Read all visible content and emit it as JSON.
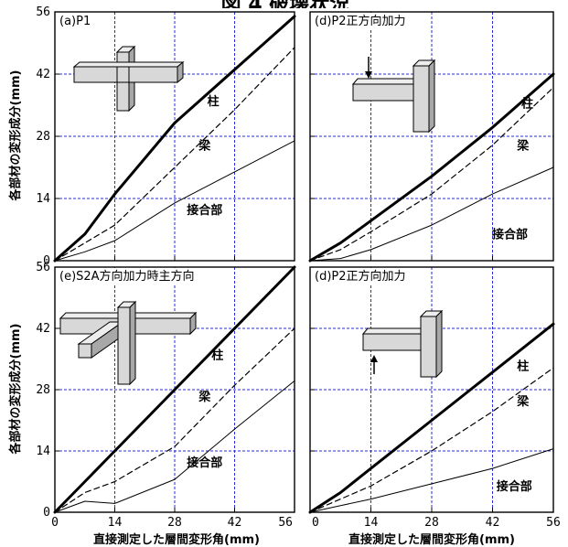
{
  "figure": {
    "title": "図 4 破壊状況",
    "ylabel": "各部材の変形成分(mm)",
    "xlabel": "直接測定した層間変形角(mm)"
  },
  "chart_data": [
    {
      "type": "line",
      "panel_label": "(a)P1",
      "xlim": [
        0,
        56
      ],
      "ylim": [
        0,
        56
      ],
      "xticks": [
        0,
        14,
        28,
        42,
        56
      ],
      "yticks": [
        0,
        14,
        28,
        42,
        56
      ],
      "grid": true,
      "annotations": [
        {
          "text": "柱",
          "x": 37,
          "y": 35
        },
        {
          "text": "梁",
          "x": 35,
          "y": 25
        },
        {
          "text": "接合部",
          "x": 35,
          "y": 10.5
        }
      ],
      "series": [
        {
          "style": "thick",
          "x": [
            0,
            7,
            14,
            28,
            42,
            56
          ],
          "y": [
            0,
            6,
            15,
            31,
            43,
            55
          ]
        },
        {
          "style": "dashed",
          "x": [
            0,
            7,
            14,
            28,
            42,
            56
          ],
          "y": [
            0,
            4,
            8,
            21,
            34,
            48
          ]
        },
        {
          "style": "thin",
          "x": [
            0,
            7,
            14,
            28,
            42,
            56
          ],
          "y": [
            0,
            2,
            4.5,
            13,
            20,
            27
          ]
        }
      ]
    },
    {
      "type": "line",
      "panel_label": "(d)P2正方向加力",
      "xlim": [
        0,
        56
      ],
      "ylim": [
        0,
        56
      ],
      "xticks": [
        0,
        14,
        28,
        42,
        56
      ],
      "yticks": [
        0,
        14,
        28,
        42,
        56
      ],
      "grid": true,
      "annotations": [
        {
          "text": "柱",
          "x": 50,
          "y": 34.5
        },
        {
          "text": "梁",
          "x": 49,
          "y": 25
        },
        {
          "text": "接合部",
          "x": 46,
          "y": 5
        }
      ],
      "series": [
        {
          "style": "thick",
          "x": [
            0,
            7,
            14,
            28,
            42,
            56
          ],
          "y": [
            0,
            4,
            9,
            19,
            30,
            42
          ]
        },
        {
          "style": "dashed",
          "x": [
            0,
            7,
            14,
            28,
            42,
            56
          ],
          "y": [
            0,
            2.5,
            6.5,
            15,
            26,
            39
          ]
        },
        {
          "style": "thin",
          "x": [
            0,
            7,
            14,
            28,
            42,
            56
          ],
          "y": [
            0,
            0.5,
            2.5,
            8,
            15,
            21
          ]
        }
      ]
    },
    {
      "type": "line",
      "panel_label": "(e)S2A方向加力時主方向",
      "xlim": [
        0,
        56
      ],
      "ylim": [
        0,
        56
      ],
      "xticks": [
        0,
        14,
        28,
        42,
        56
      ],
      "yticks": [
        0,
        14,
        28,
        42,
        56
      ],
      "grid": true,
      "annotations": [
        {
          "text": "柱",
          "x": 38,
          "y": 35
        },
        {
          "text": "梁",
          "x": 35,
          "y": 25.5
        },
        {
          "text": "接合部",
          "x": 35,
          "y": 10.5
        }
      ],
      "series": [
        {
          "style": "thick",
          "x": [
            0,
            7,
            14,
            28,
            42,
            56
          ],
          "y": [
            0,
            7,
            14,
            28,
            42,
            56
          ]
        },
        {
          "style": "dashed",
          "x": [
            0,
            7,
            14,
            28,
            42,
            56
          ],
          "y": [
            0,
            4.5,
            7,
            15,
            29,
            42
          ]
        },
        {
          "style": "thin",
          "x": [
            0,
            7,
            14,
            28,
            42,
            56
          ],
          "y": [
            0,
            2.5,
            2,
            7.5,
            19,
            30
          ]
        }
      ]
    },
    {
      "type": "line",
      "panel_label": "(d)P2正方向加力",
      "xlim": [
        0,
        56
      ],
      "ylim": [
        0,
        56
      ],
      "xticks": [
        0,
        14,
        28,
        42,
        56
      ],
      "yticks": [
        0,
        14,
        28,
        42,
        56
      ],
      "grid": true,
      "annotations": [
        {
          "text": "柱",
          "x": 49,
          "y": 32.5
        },
        {
          "text": "梁",
          "x": 49,
          "y": 24.5
        },
        {
          "text": "接合部",
          "x": 47,
          "y": 5
        }
      ],
      "series": [
        {
          "style": "thick",
          "x": [
            0,
            7,
            14,
            28,
            42,
            56
          ],
          "y": [
            0,
            4.5,
            10,
            21,
            32,
            43
          ]
        },
        {
          "style": "dashed",
          "x": [
            0,
            7,
            14,
            28,
            42,
            56
          ],
          "y": [
            0,
            3,
            6,
            14,
            23,
            33
          ]
        },
        {
          "style": "thin",
          "x": [
            0,
            7,
            14,
            28,
            42,
            56
          ],
          "y": [
            0,
            1.5,
            3,
            6.5,
            10,
            14.5
          ]
        }
      ]
    }
  ]
}
